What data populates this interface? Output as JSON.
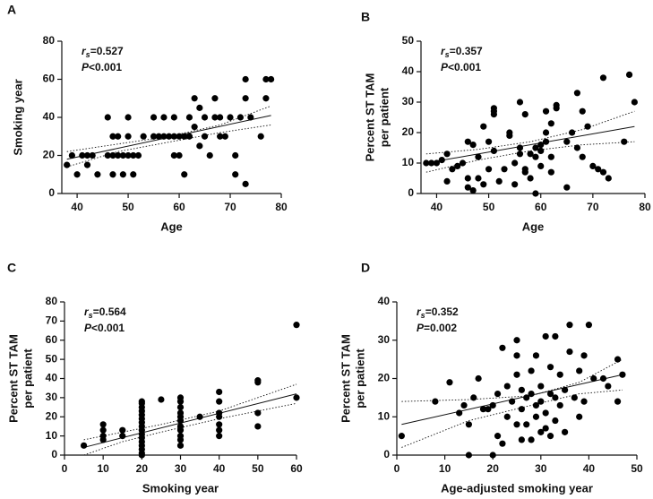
{
  "chart_data": [
    {
      "type": "scatter",
      "panel_label": "A",
      "annotation": {
        "r_symbol": "r",
        "r_subscript": "s",
        "r_value": "=0.527",
        "p_symbol": "P",
        "p_value": "<0.001"
      },
      "x_label": "Age",
      "y_label": [
        "Smoking year"
      ],
      "color": "#000000",
      "x": [
        38,
        39,
        40,
        41,
        42,
        42,
        43,
        44,
        46,
        46,
        47,
        47,
        47,
        48,
        48,
        49,
        49,
        50,
        50,
        50,
        51,
        51,
        52,
        53,
        55,
        55,
        56,
        57,
        57,
        58,
        59,
        59,
        59,
        60,
        60,
        61,
        61,
        62,
        62,
        63,
        63,
        64,
        64,
        65,
        65,
        66,
        67,
        67,
        68,
        68,
        69,
        70,
        71,
        71,
        72,
        73,
        73,
        73,
        74,
        76,
        77,
        77,
        78
      ],
      "values": [
        15,
        20,
        10,
        20,
        20,
        15,
        20,
        10,
        40,
        20,
        10,
        30,
        20,
        20,
        30,
        20,
        10,
        40,
        30,
        20,
        20,
        10,
        20,
        30,
        40,
        30,
        30,
        40,
        30,
        30,
        30,
        40,
        20,
        20,
        30,
        30,
        10,
        40,
        30,
        50,
        35,
        25,
        45,
        30,
        40,
        20,
        40,
        50,
        40,
        30,
        30,
        40,
        10,
        20,
        40,
        5,
        50,
        60,
        40,
        30,
        50,
        60,
        60
      ],
      "fit_line": {
        "x": [
          38,
          78
        ],
        "values": [
          18,
          41
        ]
      },
      "ci_upper": {
        "x": [
          38,
          48,
          58,
          68,
          78
        ],
        "values": [
          22,
          26,
          30,
          36,
          46
        ]
      },
      "ci_lower": {
        "x": [
          38,
          48,
          58,
          68,
          78
        ],
        "values": [
          14,
          22,
          27,
          32,
          36
        ]
      },
      "xlim": [
        37,
        80
      ],
      "ylim": [
        0,
        80
      ],
      "xticks": [
        40,
        50,
        60,
        70,
        80
      ],
      "yticks": [
        0,
        20,
        40,
        60,
        80
      ]
    },
    {
      "type": "scatter",
      "panel_label": "B",
      "annotation": {
        "r_symbol": "r",
        "r_subscript": "s",
        "r_value": "=0.357",
        "p_symbol": "P",
        "p_value": "<0.001"
      },
      "x_label": "Age",
      "y_label": [
        "Percent ST TAM",
        "per patient"
      ],
      "color": "#000000",
      "x": [
        38,
        39,
        40,
        41,
        42,
        42,
        43,
        44,
        45,
        46,
        46,
        46,
        47,
        47,
        48,
        48,
        49,
        49,
        50,
        50,
        51,
        51,
        51,
        51,
        52,
        53,
        54,
        54,
        55,
        55,
        56,
        56,
        56,
        57,
        57,
        57,
        58,
        58,
        59,
        59,
        59,
        60,
        60,
        60,
        61,
        61,
        61,
        62,
        62,
        62,
        63,
        63,
        65,
        65,
        66,
        67,
        67,
        68,
        68,
        69,
        70,
        71,
        72,
        72,
        73,
        76,
        77,
        78
      ],
      "values": [
        10,
        10,
        10,
        11,
        4,
        13,
        8,
        9,
        10,
        2,
        17,
        5,
        1,
        16,
        12,
        5,
        3,
        22,
        17,
        8,
        28,
        27,
        26,
        14,
        4,
        8,
        19,
        20,
        3,
        10,
        30,
        13,
        15,
        8,
        7,
        26,
        5,
        13,
        0,
        15,
        12,
        14,
        9,
        16,
        17,
        20,
        27,
        12,
        7,
        23,
        28,
        29,
        2,
        17,
        20,
        33,
        15,
        27,
        12,
        22,
        9,
        8,
        7,
        38,
        5,
        17,
        39,
        30
      ],
      "fit_line": {
        "x": [
          38,
          78
        ],
        "values": [
          10,
          22
        ]
      },
      "ci_upper": {
        "x": [
          38,
          48,
          58,
          68,
          78
        ],
        "values": [
          13,
          14.5,
          17,
          21,
          27
        ]
      },
      "ci_lower": {
        "x": [
          38,
          48,
          58,
          68,
          78
        ],
        "values": [
          7,
          11,
          14,
          16,
          17
        ]
      },
      "xlim": [
        37,
        80
      ],
      "ylim": [
        0,
        50
      ],
      "xticks": [
        40,
        50,
        60,
        70,
        80
      ],
      "yticks": [
        0,
        10,
        20,
        30,
        40,
        50
      ]
    },
    {
      "type": "scatter",
      "panel_label": "C",
      "annotation": {
        "r_symbol": "r",
        "r_subscript": "s",
        "r_value": "=0.564",
        "p_symbol": "P",
        "p_value": "<0.001"
      },
      "x_label": "Smoking year",
      "y_label": [
        "Percent ST TAM",
        "per patient"
      ],
      "color": "#000000",
      "x": [
        5,
        10,
        10,
        10,
        10,
        15,
        15,
        20,
        20,
        20,
        20,
        20,
        20,
        20,
        20,
        20,
        20,
        20,
        20,
        20,
        20,
        20,
        20,
        25,
        30,
        30,
        30,
        30,
        30,
        30,
        30,
        30,
        30,
        30,
        30,
        35,
        40,
        40,
        40,
        40,
        40,
        40,
        40,
        50,
        50,
        50,
        50,
        60,
        60
      ],
      "values": [
        5,
        8,
        10,
        13,
        16,
        10,
        13,
        0,
        1,
        3,
        5,
        7,
        9,
        11,
        13,
        15,
        17,
        19,
        21,
        23,
        25,
        27,
        28,
        29,
        5,
        8,
        10,
        13,
        15,
        18,
        20,
        22,
        25,
        28,
        30,
        20,
        10,
        13,
        16,
        20,
        22,
        28,
        33,
        15,
        22,
        38,
        39,
        30,
        68
      ],
      "fit_line": {
        "x": [
          5,
          60
        ],
        "values": [
          4,
          32
        ]
      },
      "ci_upper": {
        "x": [
          5,
          15,
          25,
          40,
          60
        ],
        "values": [
          8,
          12,
          16,
          23,
          37
        ]
      },
      "ci_lower": {
        "x": [
          5,
          15,
          25,
          40,
          60
        ],
        "values": [
          0,
          7,
          12,
          19,
          27
        ]
      },
      "xlim": [
        0,
        60
      ],
      "ylim": [
        0,
        80
      ],
      "xticks": [
        0,
        10,
        20,
        30,
        40,
        50,
        60
      ],
      "yticks": [
        0,
        10,
        20,
        30,
        40,
        50,
        60,
        70,
        80
      ]
    },
    {
      "type": "scatter",
      "panel_label": "D",
      "annotation": {
        "r_symbol": "r",
        "r_subscript": "s",
        "r_value": "=0.352",
        "p_symbol": "P",
        "p_value": "=0.002"
      },
      "x_label": "Age-adjusted smoking year",
      "y_label": [
        "Percent ST TAM",
        "per patient"
      ],
      "color": "#000000",
      "x": [
        1,
        8,
        11,
        13,
        14,
        15,
        15,
        16,
        17,
        18,
        19,
        20,
        20,
        21,
        21,
        22,
        22,
        23,
        23,
        24,
        25,
        25,
        25,
        25,
        26,
        26,
        26,
        27,
        27,
        28,
        28,
        28,
        29,
        29,
        29,
        30,
        30,
        30,
        31,
        31,
        31,
        32,
        32,
        32,
        33,
        33,
        33,
        34,
        34,
        35,
        35,
        36,
        36,
        37,
        38,
        38,
        39,
        39,
        40,
        41,
        43,
        44,
        46,
        46,
        47
      ],
      "values": [
        5,
        14,
        19,
        11,
        13,
        8,
        0,
        15,
        20,
        12,
        12,
        0,
        13,
        5,
        16,
        28,
        3,
        10,
        18,
        14,
        30,
        26,
        21,
        8,
        4,
        12,
        17,
        8,
        15,
        4,
        16,
        22,
        10,
        26,
        13,
        6,
        14,
        18,
        7,
        31,
        11,
        5,
        16,
        23,
        9,
        15,
        31,
        13,
        21,
        6,
        17,
        27,
        34,
        15,
        10,
        22,
        26,
        14,
        34,
        20,
        20,
        18,
        25,
        14,
        21
      ],
      "fit_line": {
        "x": [
          1,
          47
        ],
        "values": [
          8,
          21
        ]
      },
      "ci_upper": {
        "x": [
          1,
          15,
          28,
          38,
          47
        ],
        "values": [
          14,
          14.5,
          15.5,
          19,
          25
        ]
      },
      "ci_lower": {
        "x": [
          1,
          15,
          28,
          38,
          47
        ],
        "values": [
          2,
          9,
          13,
          16,
          17
        ]
      },
      "xlim": [
        0,
        50
      ],
      "ylim": [
        0,
        40
      ],
      "xticks": [
        0,
        10,
        20,
        30,
        40,
        50
      ],
      "yticks": [
        0,
        10,
        20,
        30,
        40
      ]
    }
  ]
}
